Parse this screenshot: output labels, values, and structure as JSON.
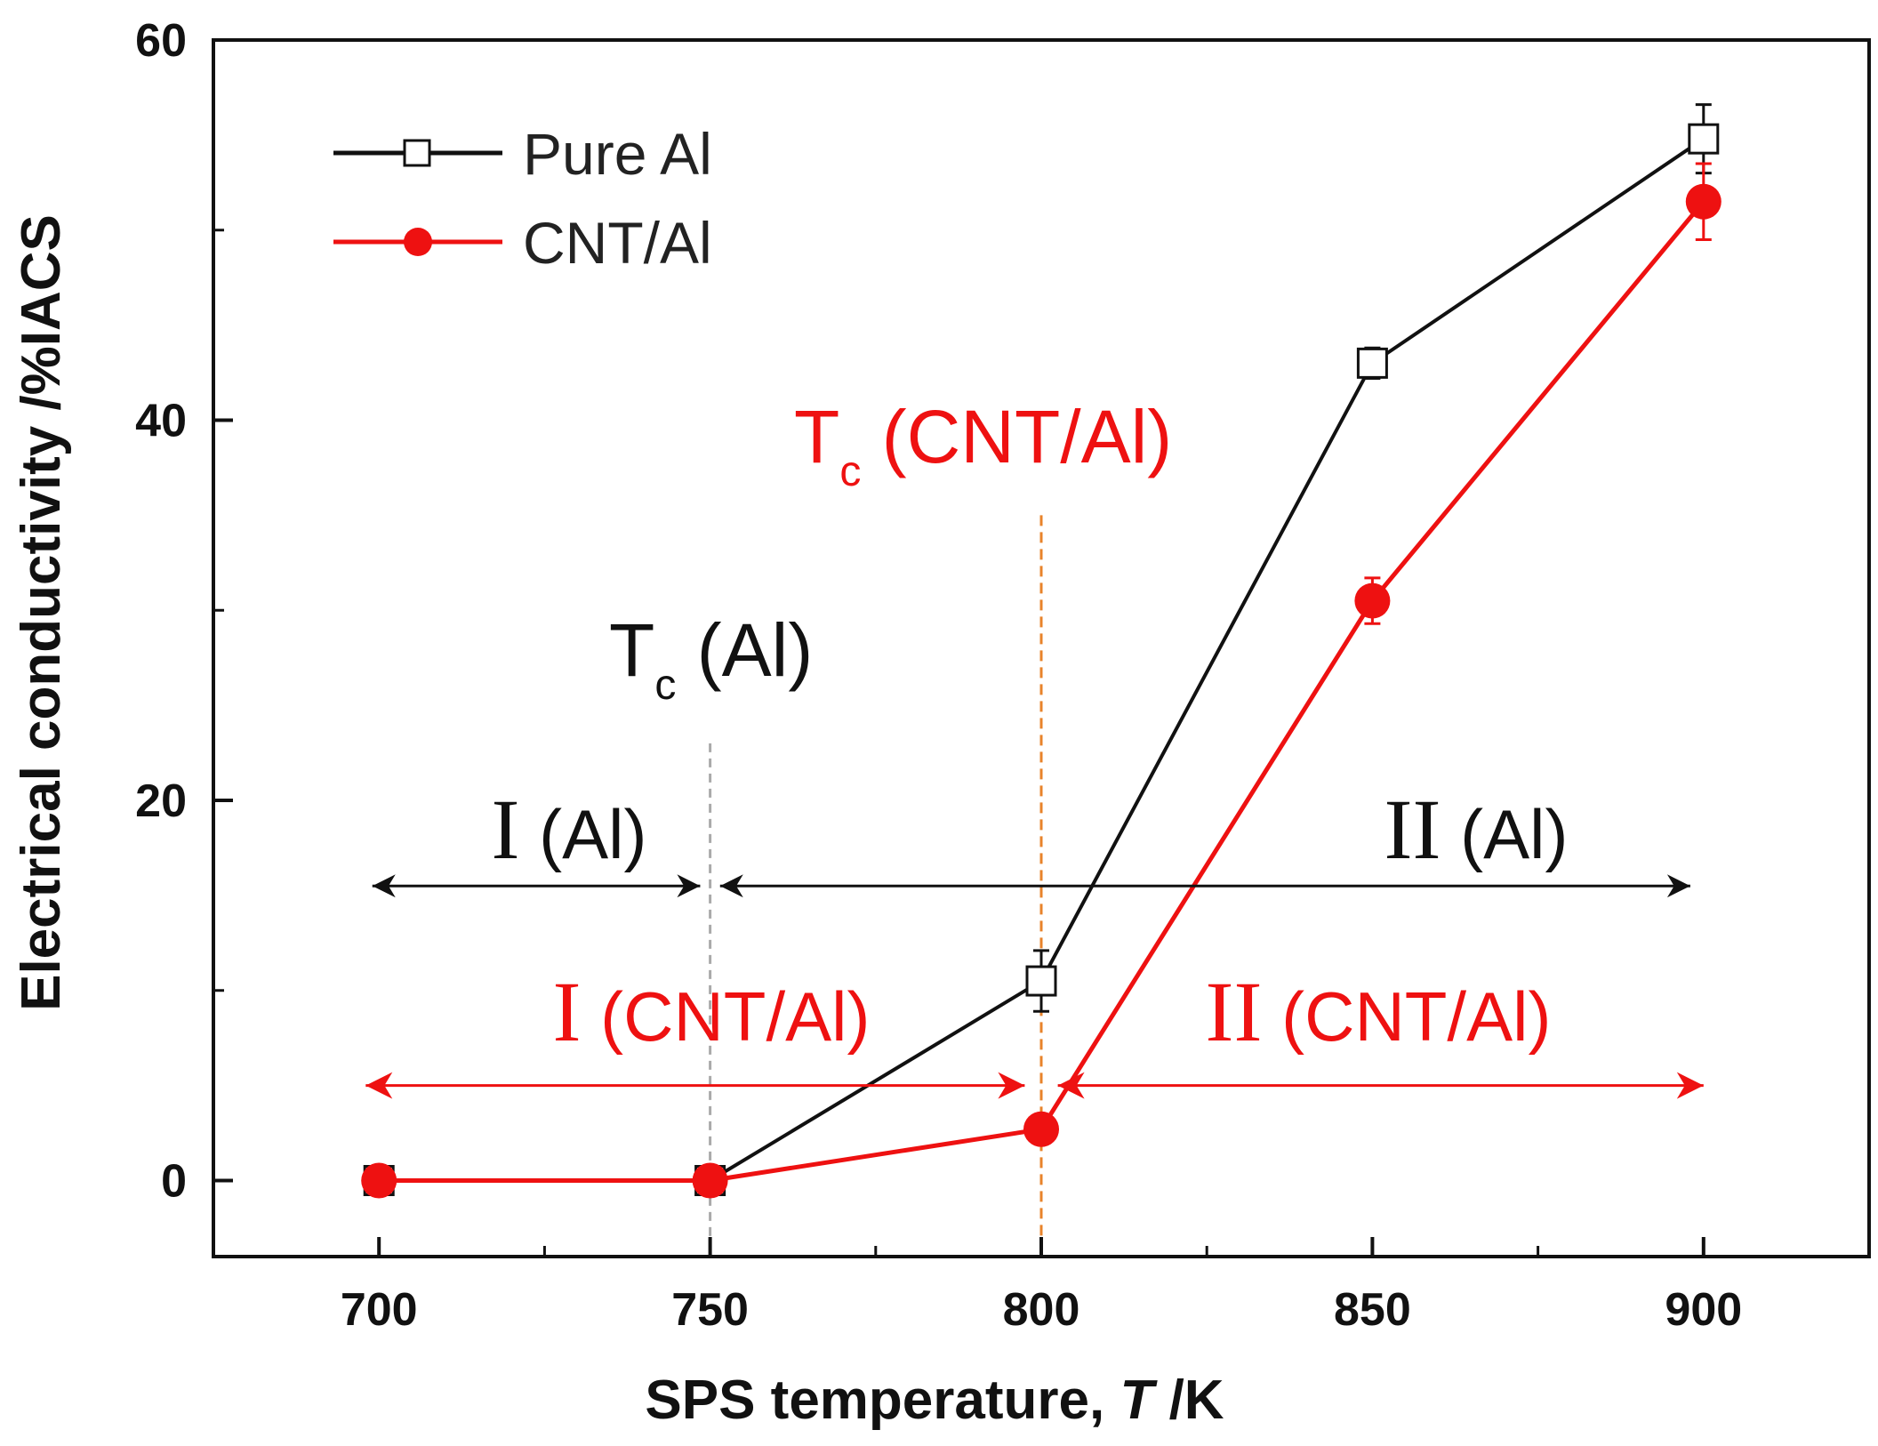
{
  "chart_data": {
    "type": "line",
    "x": [
      700,
      750,
      800,
      850,
      900
    ],
    "series": [
      {
        "name": "Pure Al",
        "color": "#111111",
        "marker": "open-square",
        "values": [
          0,
          0,
          10.5,
          43,
          54.8
        ],
        "errors": [
          0,
          0,
          1.6,
          0.8,
          1.8
        ]
      },
      {
        "name": "CNT/Al",
        "color": "#ee1111",
        "marker": "filled-circle",
        "values": [
          0,
          0,
          2.7,
          30.5,
          51.5
        ],
        "errors": [
          0,
          0,
          0.4,
          1.2,
          2.0
        ]
      }
    ],
    "xlabel": {
      "main": "SPS temperature, ",
      "var": "T",
      "unit": " /K"
    },
    "ylabel": "Electrical conductivity /%IACS",
    "xlim": [
      675,
      925
    ],
    "ylim": [
      -4,
      60
    ],
    "xticks": [
      700,
      750,
      800,
      850,
      900
    ],
    "xticks_minor": [
      725,
      775,
      825,
      875
    ],
    "yticks": [
      0,
      20,
      40,
      60
    ],
    "yticks_minor": [
      10,
      30,
      50
    ],
    "legend_position": "top-left",
    "annotations": {
      "tc_al": {
        "main": "T",
        "sub": "c",
        "rest": " (Al)",
        "x": 750
      },
      "tc_cnt": {
        "main": "T",
        "sub": "c",
        "rest": " (CNT/Al)",
        "x": 800
      },
      "region_I_al": {
        "roman": "I",
        "rest": " (Al)",
        "x_from": 700,
        "x_to": 750,
        "y": 15.5
      },
      "region_II_al": {
        "roman": "II",
        "rest": " (Al)",
        "x_from": 750,
        "x_to": 900,
        "y": 15.5
      },
      "region_I_cnt": {
        "roman": "I",
        "rest": " (CNT/Al)",
        "x_from": 700,
        "x_to": 800,
        "y": 5
      },
      "region_II_cnt": {
        "roman": "II",
        "rest": " (CNT/Al)",
        "x_from": 800,
        "x_to": 900,
        "y": 5
      }
    },
    "colors": {
      "black": "#111111",
      "red": "#ee1111",
      "orange_dash": "#e8832a",
      "grey_dash": "#aaaaaa"
    }
  }
}
